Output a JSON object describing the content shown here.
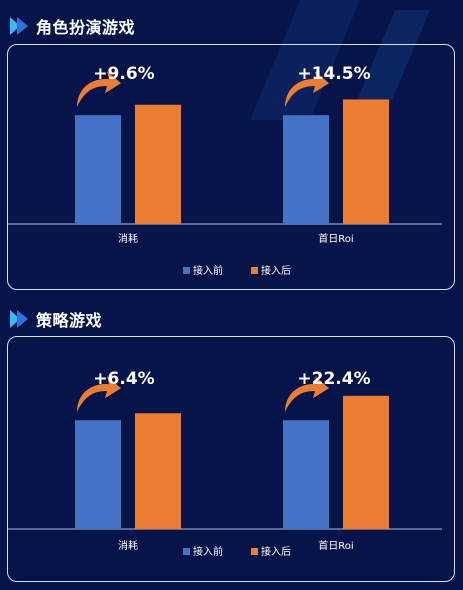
{
  "colors": {
    "before": "#4472c4",
    "after": "#ed7d31",
    "arrow": "#ed7d31",
    "axis": "#b4bad0",
    "title_icon_light": "#39b8f2",
    "title_icon_dark": "#2f6fe0"
  },
  "icons": {
    "title": "double-chevron-right-icon",
    "growth": "curved-arrow-up-right-icon"
  },
  "chart_data": [
    {
      "type": "bar",
      "title": "角色扮演游戏",
      "categories": [
        "消耗",
        "首日Roi"
      ],
      "series": [
        {
          "name": "接入前",
          "values": [
            1.0,
            1.0
          ]
        },
        {
          "name": "接入后",
          "values": [
            1.096,
            1.145
          ]
        }
      ],
      "annotations": [
        "+9.6%",
        "+14.5%"
      ],
      "legend_position": "bottom-center",
      "ylim": [
        0,
        1.48
      ],
      "grid": false
    },
    {
      "type": "bar",
      "title": "策略游戏",
      "categories": [
        "消耗",
        "首日Roi"
      ],
      "series": [
        {
          "name": "接入前",
          "values": [
            1.0,
            1.0
          ]
        },
        {
          "name": "接入后",
          "values": [
            1.064,
            1.224
          ]
        }
      ],
      "annotations": [
        "+6.4%",
        "+22.4%"
      ],
      "legend_position": "bottom-center",
      "ylim": [
        0,
        1.48
      ],
      "grid": false
    }
  ]
}
